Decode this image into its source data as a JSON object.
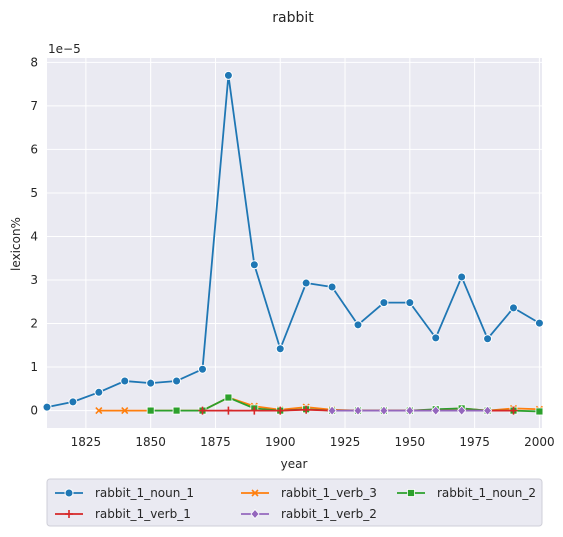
{
  "chart_data": {
    "type": "line",
    "title": "rabbit",
    "xlabel": "year",
    "ylabel": "lexicon%",
    "y_scale_label": "1e−5",
    "xlim": [
      1810,
      2001
    ],
    "ylim": [
      -0.4,
      8.1
    ],
    "x_ticks": [
      1825,
      1850,
      1875,
      1900,
      1925,
      1950,
      1975,
      2000
    ],
    "y_ticks": [
      0,
      1,
      2,
      3,
      4,
      5,
      6,
      7,
      8
    ],
    "grid": true,
    "legend_position": "bottom",
    "series": [
      {
        "name": "rabbit_1_noun_1",
        "color": "#1f77b4",
        "marker": "circle",
        "x": [
          1810,
          1820,
          1830,
          1840,
          1850,
          1860,
          1870,
          1880,
          1890,
          1900,
          1910,
          1920,
          1930,
          1940,
          1950,
          1960,
          1970,
          1980,
          1990,
          2000
        ],
        "y": [
          0.08,
          0.2,
          0.42,
          0.68,
          0.63,
          0.68,
          0.95,
          7.7,
          3.35,
          1.42,
          2.93,
          2.84,
          1.97,
          2.48,
          2.48,
          1.67,
          3.07,
          1.65,
          2.36,
          2.01
        ]
      },
      {
        "name": "rabbit_1_verb_3",
        "color": "#ff7f0e",
        "marker": "x",
        "x": [
          1830,
          1840,
          1850,
          1860,
          1870,
          1880,
          1890,
          1900,
          1910,
          1920,
          1930,
          1940,
          1950,
          1960,
          1970,
          1980,
          1990,
          2000
        ],
        "y": [
          0.0,
          0.0,
          0.0,
          0.0,
          0.0,
          0.3,
          0.1,
          0.02,
          0.08,
          0.02,
          0.0,
          0.0,
          0.0,
          0.02,
          0.05,
          0.0,
          0.05,
          0.03
        ]
      },
      {
        "name": "rabbit_1_noun_2",
        "color": "#2ca02c",
        "marker": "square",
        "x": [
          1850,
          1860,
          1870,
          1880,
          1890,
          1900,
          1910,
          1920,
          1930,
          1940,
          1950,
          1960,
          1970,
          1980,
          1990,
          2000
        ],
        "y": [
          0.0,
          0.0,
          0.0,
          0.3,
          0.05,
          0.0,
          0.03,
          0.0,
          0.0,
          0.0,
          0.0,
          0.03,
          0.05,
          0.0,
          0.0,
          -0.02
        ]
      },
      {
        "name": "rabbit_1_verb_1",
        "color": "#d62728",
        "marker": "plus",
        "x": [
          1870,
          1880,
          1890,
          1900,
          1910,
          1920,
          1930,
          1940,
          1950,
          1960,
          1970,
          1980,
          1990
        ],
        "y": [
          0.0,
          0.0,
          0.0,
          0.0,
          0.02,
          0.0,
          0.0,
          0.0,
          0.0,
          0.0,
          0.0,
          0.0,
          0.0
        ]
      },
      {
        "name": "rabbit_1_verb_2",
        "color": "#9467bd",
        "marker": "diamond",
        "x": [
          1920,
          1930,
          1940,
          1950,
          1960,
          1970,
          1980
        ],
        "y": [
          0.0,
          0.0,
          0.0,
          0.0,
          0.0,
          0.0,
          0.0
        ]
      }
    ]
  }
}
